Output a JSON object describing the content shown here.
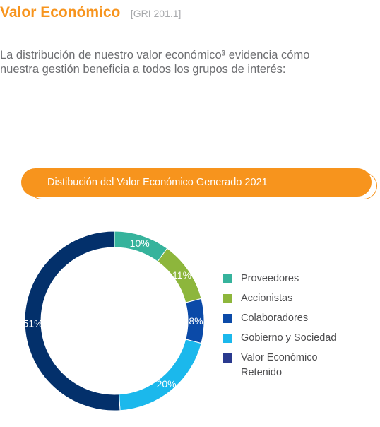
{
  "header": {
    "title": "Valor Económico",
    "reference": "[GRI 201.1]"
  },
  "intro": {
    "line1": "La distribución de nuestro valor económico³ evidencia cómo",
    "line2": "nuestra gestión beneficia a todos los grupos de interés:"
  },
  "banner": {
    "text": "Distibución del Valor Económico Generado 2021"
  },
  "colors": {
    "accent": "#f7941d",
    "text": "#6d6e71"
  },
  "chart_data": {
    "type": "pie",
    "style": "donut",
    "title": "Distibución del Valor Económico Generado 2021",
    "legend_position": "right",
    "slices": [
      {
        "name": "Proveedores",
        "value": 10,
        "label": "10%",
        "color": "#36b39c"
      },
      {
        "name": "Accionistas",
        "value": 11,
        "label": "11%",
        "color": "#8db63c"
      },
      {
        "name": "Colaboradores",
        "value": 8,
        "label": "8%",
        "color": "#0b4aa8"
      },
      {
        "name": "Gobierno y Sociedad",
        "value": 20,
        "label": "20%",
        "color": "#1bb8ec"
      },
      {
        "name": "Valor Económico Retenido",
        "value": 51,
        "label": "51%",
        "color": "#03306b"
      }
    ]
  },
  "legend": {
    "items": [
      {
        "label": "Proveedores",
        "color": "#36b39c"
      },
      {
        "label": "Accionistas",
        "color": "#8db63c"
      },
      {
        "label": "Colaboradores",
        "color": "#0b4aa8"
      },
      {
        "label": "Gobierno y Sociedad",
        "color": "#1bb8ec"
      },
      {
        "label": "Valor Económico Retenido",
        "color": "#2a3a8f"
      }
    ]
  }
}
